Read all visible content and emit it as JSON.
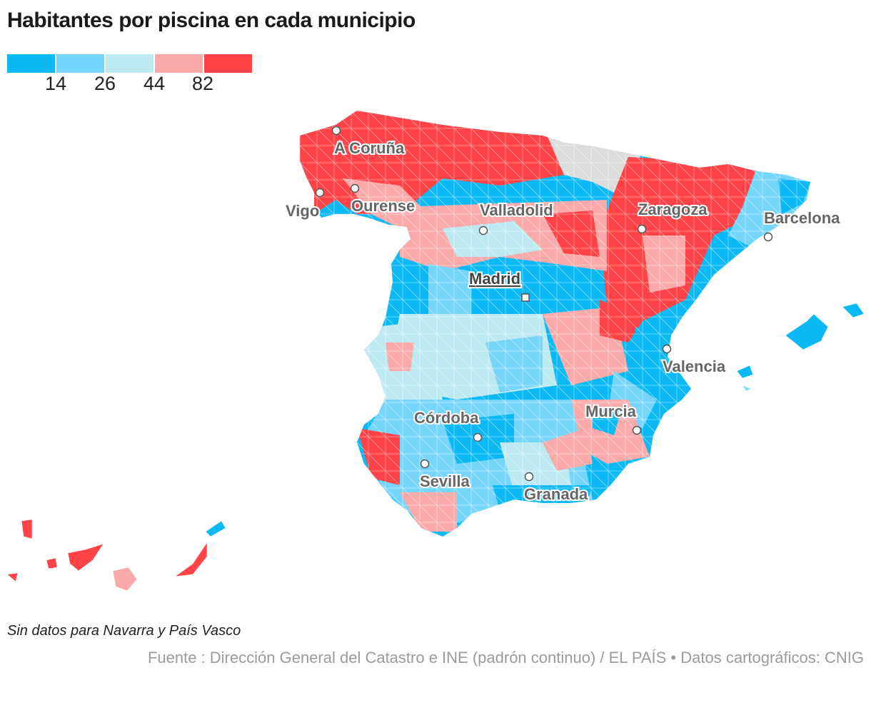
{
  "title": "Habitantes por piscina en cada municipio",
  "legend": {
    "colors": [
      "#0bbaf5",
      "#76d5fb",
      "#bde9f0",
      "#fbaaa9",
      "#ff4347"
    ],
    "thresholds": [
      "14",
      "26",
      "44",
      "82"
    ]
  },
  "map": {
    "no_data_color": "#dcdcdc",
    "cities": [
      {
        "name": "A Coruña"
      },
      {
        "name": "Vigo"
      },
      {
        "name": "Ourense"
      },
      {
        "name": "Valladolid"
      },
      {
        "name": "Zaragoza"
      },
      {
        "name": "Barcelona"
      },
      {
        "name": "Madrid"
      },
      {
        "name": "Valencia"
      },
      {
        "name": "Córdoba"
      },
      {
        "name": "Murcia"
      },
      {
        "name": "Sevilla"
      },
      {
        "name": "Granada"
      }
    ]
  },
  "note": "Sin datos para Navarra y País Vasco",
  "source": "Fuente : Dirección General del Catastro e INE (padrón continuo) / EL PAÍS  • Datos cartográficos: CNIG"
}
